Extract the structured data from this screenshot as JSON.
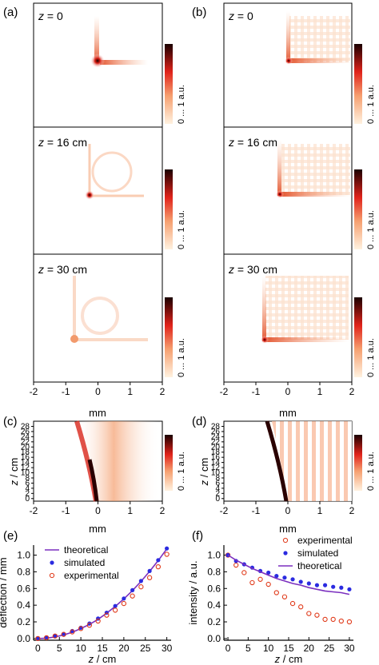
{
  "panel_labels": [
    "(a)",
    "(b)",
    "(c)",
    "(d)",
    "(e)",
    "(f)"
  ],
  "row_labels": [
    {
      "var": "z",
      "rest": " = 0"
    },
    {
      "var": "z",
      "rest": " = 16 cm"
    },
    {
      "var": "z",
      "rest": " = 30 cm"
    }
  ],
  "colorbar_label": "0 ... 1 a.u.",
  "mm_axis": {
    "ticks": [
      "-2",
      "-1",
      "0",
      "1",
      "2"
    ],
    "label": "mm"
  },
  "z_axis": {
    "ticks": [
      "0",
      "2",
      "4",
      "6",
      "8",
      "10",
      "12",
      "14",
      "16",
      "18",
      "20",
      "22",
      "24",
      "26",
      "28"
    ],
    "label_var": "z",
    "label_rest": " / cm"
  },
  "colors": {
    "purple": "#7b2fbf",
    "blue": "#2b2be0",
    "red": "#e03a1a"
  },
  "chart_data": [
    {
      "type": "line",
      "panel": "(e)",
      "xlabel": "z / cm",
      "ylabel": "deflection / mm",
      "xticks": [
        "0",
        "5",
        "10",
        "15",
        "20",
        "25",
        "30"
      ],
      "yticks": [
        "0.0",
        "0.2",
        "0.4",
        "0.6",
        "0.8",
        "1.0"
      ],
      "xlim": [
        -1,
        31
      ],
      "ylim": [
        -0.02,
        1.12
      ],
      "legend": "top-left",
      "series": [
        {
          "name": "theoretical",
          "style": "line",
          "color": "#7b2fbf",
          "x": [
            0,
            2,
            4,
            6,
            8,
            10,
            12,
            14,
            16,
            18,
            20,
            22,
            24,
            26,
            28,
            30
          ],
          "y": [
            0.0,
            0.005,
            0.019,
            0.043,
            0.076,
            0.12,
            0.17,
            0.23,
            0.305,
            0.385,
            0.475,
            0.575,
            0.685,
            0.805,
            0.935,
            1.075
          ]
        },
        {
          "name": "simulated",
          "style": "dot",
          "color": "#2b2be0",
          "x": [
            0,
            2,
            4,
            6,
            8,
            10,
            12,
            14,
            16,
            18,
            20,
            22,
            24,
            26,
            28,
            30
          ],
          "y": [
            0.0,
            0.01,
            0.03,
            0.055,
            0.09,
            0.13,
            0.18,
            0.24,
            0.31,
            0.39,
            0.48,
            0.58,
            0.69,
            0.81,
            0.94,
            1.08
          ]
        },
        {
          "name": "experimental",
          "style": "circle",
          "color": "#e03a1a",
          "x": [
            0,
            2,
            4,
            6,
            8,
            10,
            12,
            14,
            16,
            18,
            20,
            22,
            24,
            26,
            28,
            30
          ],
          "y": [
            0.0,
            0.01,
            0.03,
            0.05,
            0.08,
            0.12,
            0.16,
            0.21,
            0.28,
            0.34,
            0.42,
            0.51,
            0.62,
            0.73,
            0.86,
            1.01
          ]
        }
      ]
    },
    {
      "type": "line",
      "panel": "(f)",
      "xlabel": "z / cm",
      "ylabel": "intensity / a.u.",
      "xticks": [
        "0",
        "5",
        "10",
        "15",
        "20",
        "25",
        "30"
      ],
      "yticks": [
        "0.0",
        "0.2",
        "0.4",
        "0.6",
        "0.8",
        "1.0"
      ],
      "xlim": [
        -1,
        31
      ],
      "ylim": [
        -0.02,
        1.12
      ],
      "legend": "top-right",
      "series": [
        {
          "name": "experimental",
          "style": "circle",
          "color": "#e03a1a",
          "x": [
            0,
            2,
            4,
            6,
            8,
            10,
            12,
            14,
            16,
            18,
            20,
            22,
            24,
            26,
            28,
            30
          ],
          "y": [
            1.0,
            0.88,
            0.79,
            0.67,
            0.71,
            0.65,
            0.55,
            0.5,
            0.42,
            0.38,
            0.3,
            0.28,
            0.23,
            0.23,
            0.21,
            0.2
          ]
        },
        {
          "name": "simulated",
          "style": "dot",
          "color": "#2b2be0",
          "x": [
            0,
            2,
            4,
            6,
            8,
            10,
            12,
            14,
            16,
            18,
            20,
            22,
            24,
            26,
            28,
            30
          ],
          "y": [
            1.0,
            0.93,
            0.89,
            0.85,
            0.81,
            0.79,
            0.75,
            0.73,
            0.71,
            0.68,
            0.66,
            0.64,
            0.64,
            0.62,
            0.61,
            0.59
          ]
        },
        {
          "name": "theoretical",
          "style": "line",
          "color": "#7b2fbf",
          "x": [
            0,
            2,
            4,
            6,
            8,
            10,
            12,
            14,
            16,
            18,
            20,
            22,
            24,
            26,
            28,
            30
          ],
          "y": [
            1.0,
            0.94,
            0.89,
            0.84,
            0.8,
            0.76,
            0.72,
            0.69,
            0.66,
            0.64,
            0.61,
            0.59,
            0.57,
            0.56,
            0.55,
            0.53
          ]
        }
      ]
    }
  ]
}
